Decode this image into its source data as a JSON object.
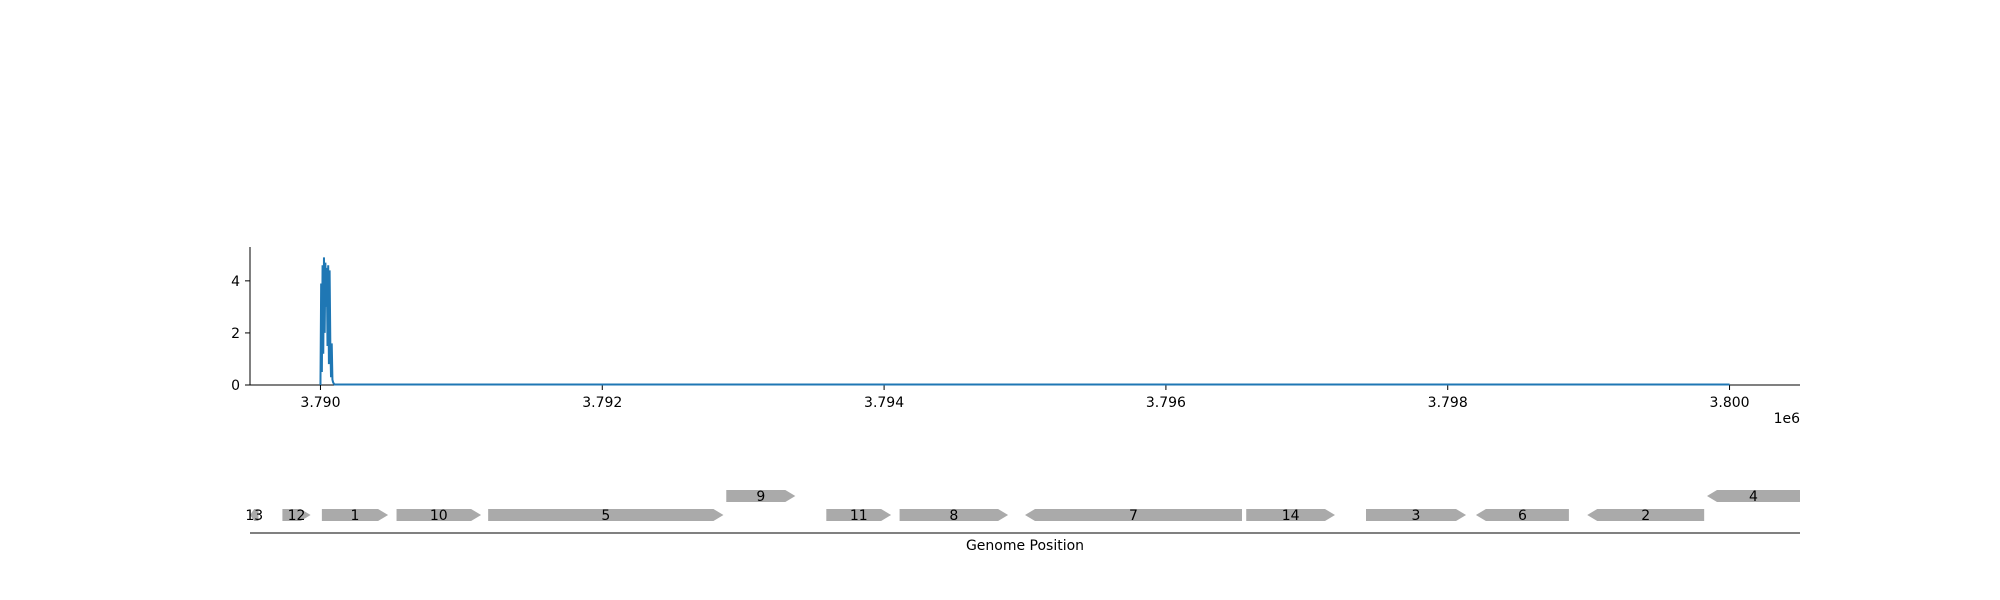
{
  "chart_data": [
    {
      "type": "line",
      "title": "",
      "xlabel": "",
      "ylabel": "",
      "x_offset_label": "1e6",
      "xlim": [
        3789500,
        3800500
      ],
      "ylim": [
        0,
        5.3
      ],
      "x_ticks": [
        3790000,
        3792000,
        3794000,
        3796000,
        3798000,
        3800000
      ],
      "x_tick_labels": [
        "3.790",
        "3.792",
        "3.794",
        "3.796",
        "3.798",
        "3.800"
      ],
      "y_ticks": [
        0,
        2,
        4
      ],
      "y_tick_labels": [
        "0",
        "2",
        "4"
      ],
      "grid": false,
      "color": "#1f77b4",
      "series": [
        {
          "x": [
            3790000,
            3790005,
            3790010,
            3790015,
            3790020,
            3790025,
            3790030,
            3790035,
            3790040,
            3790045,
            3790050,
            3790055,
            3790060,
            3790065,
            3790070,
            3790075,
            3790080,
            3790085,
            3790090,
            3790095,
            3790100,
            3790150,
            3800000
          ],
          "y": [
            0,
            3.9,
            0.5,
            4.6,
            1.2,
            4.9,
            2.0,
            4.7,
            3.0,
            4.5,
            1.5,
            4.6,
            0.8,
            4.4,
            1.6,
            0.3,
            1.6,
            0.2,
            0.1,
            0.05,
            0.02,
            0.02,
            0.02
          ]
        }
      ]
    },
    {
      "type": "gene_track",
      "xlabel": "Genome Position",
      "xlim": [
        3789500,
        3800500
      ],
      "genes": [
        {
          "label": "13",
          "start": 3789500,
          "end": 3789560,
          "strand": "-",
          "row": 0
        },
        {
          "label": "12",
          "start": 3789730,
          "end": 3789930,
          "strand": "+",
          "row": 0
        },
        {
          "label": "1",
          "start": 3790010,
          "end": 3790480,
          "strand": "+",
          "row": 0
        },
        {
          "label": "10",
          "start": 3790540,
          "end": 3791140,
          "strand": "+",
          "row": 0
        },
        {
          "label": "5",
          "start": 3791190,
          "end": 3792860,
          "strand": "+",
          "row": 0
        },
        {
          "label": "9",
          "start": 3792880,
          "end": 3793370,
          "strand": "+",
          "row": 1
        },
        {
          "label": "11",
          "start": 3793590,
          "end": 3794050,
          "strand": "+",
          "row": 0
        },
        {
          "label": "8",
          "start": 3794110,
          "end": 3794880,
          "strand": "+",
          "row": 0
        },
        {
          "label": "7",
          "start": 3795000,
          "end": 3796540,
          "strand": "-",
          "row": 0
        },
        {
          "label": "14",
          "start": 3796570,
          "end": 3797200,
          "strand": "+",
          "row": 0
        },
        {
          "label": "3",
          "start": 3797420,
          "end": 3798130,
          "strand": "+",
          "row": 0
        },
        {
          "label": "6",
          "start": 3798200,
          "end": 3798860,
          "strand": "-",
          "row": 0
        },
        {
          "label": "2",
          "start": 3798990,
          "end": 3799820,
          "strand": "-",
          "row": 0
        },
        {
          "label": "4",
          "start": 3799840,
          "end": 3800500,
          "strand": "-",
          "row": 1
        }
      ],
      "gene_color": "#aaaaaa"
    }
  ]
}
